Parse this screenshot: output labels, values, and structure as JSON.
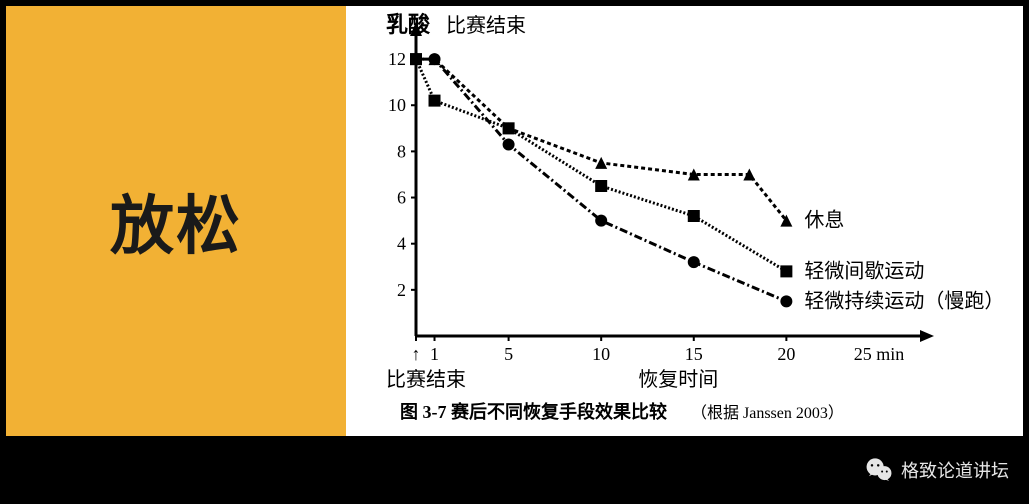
{
  "left_panel": {
    "title": "放松",
    "bg_color": "#f2b134",
    "title_color": "#1a1a1a",
    "title_fontsize": 64
  },
  "chart": {
    "type": "line",
    "y_label": "乳酸",
    "annotation_top": "比赛结束",
    "x_annotation_left": "比赛结束",
    "x_label_center": "恢复时间",
    "x_unit": "25 min",
    "x_ticks": [
      0,
      1,
      5,
      10,
      15,
      20,
      25
    ],
    "x_tick_labels": [
      "↑",
      "1",
      "5",
      "10",
      "15",
      "20"
    ],
    "y_ticks": [
      2,
      4,
      6,
      8,
      10,
      12
    ],
    "xlim": [
      0,
      27
    ],
    "ylim": [
      0,
      13
    ],
    "series": [
      {
        "name": "休息",
        "label": "休息",
        "marker": "triangle",
        "dash": "4 3",
        "color": "#000000",
        "points": [
          [
            0,
            12
          ],
          [
            1,
            12
          ],
          [
            5,
            9
          ],
          [
            10,
            7.5
          ],
          [
            15,
            7
          ],
          [
            18,
            7
          ],
          [
            20,
            5
          ]
        ]
      },
      {
        "name": "轻微间歇运动",
        "label": "轻微间歇运动",
        "marker": "square",
        "dash": "2 2",
        "color": "#000000",
        "points": [
          [
            0,
            12
          ],
          [
            1,
            10.2
          ],
          [
            5,
            9
          ],
          [
            10,
            6.5
          ],
          [
            15,
            5.2
          ],
          [
            20,
            2.8
          ]
        ]
      },
      {
        "name": "轻微持续运动（慢跑）",
        "label": "轻微持续运动（慢跑）",
        "marker": "circle",
        "dash": "8 3 2 3",
        "color": "#000000",
        "points": [
          [
            0,
            12
          ],
          [
            1,
            12
          ],
          [
            5,
            8.3
          ],
          [
            10,
            5
          ],
          [
            15,
            3.2
          ],
          [
            20,
            1.5
          ]
        ]
      }
    ],
    "axis_color": "#000000",
    "axis_width": 3,
    "line_width": 3,
    "marker_size": 6,
    "font_family": "SimSun",
    "tick_fontsize": 18,
    "label_fontsize": 22,
    "series_label_fontsize": 20
  },
  "caption": {
    "main": "图 3-7  赛后不同恢复手段效果比较",
    "sub": "（根据 Janssen 2003）"
  },
  "watermark": {
    "label": "格致论道讲坛",
    "icon": "wechat-icon"
  },
  "colors": {
    "page_bg": "#000000",
    "slide_bg": "#ffffff"
  }
}
